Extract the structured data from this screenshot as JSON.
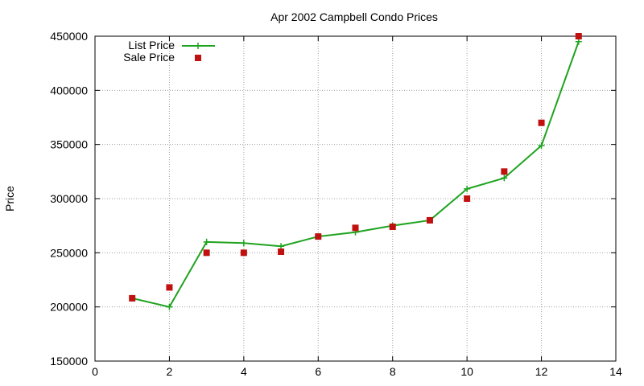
{
  "chart_data": {
    "type": "line",
    "title": "Apr 2002 Campbell Condo Prices",
    "xlabel": "",
    "ylabel": "Price",
    "xlim": [
      0,
      14
    ],
    "ylim": [
      150000,
      450000
    ],
    "xticks": [
      0,
      2,
      4,
      6,
      8,
      10,
      12,
      14
    ],
    "yticks": [
      150000,
      200000,
      250000,
      300000,
      350000,
      400000,
      450000
    ],
    "grid": true,
    "legend_position": "top-left",
    "series": [
      {
        "name": "List Price",
        "style": "line-with-plus-markers",
        "color": "#1fa31f",
        "x": [
          1,
          2,
          3,
          4,
          5,
          6,
          7,
          8,
          9,
          10,
          11,
          12,
          13
        ],
        "y": [
          208000,
          200000,
          260000,
          259000,
          256000,
          265000,
          269000,
          275000,
          280000,
          309000,
          319000,
          349000,
          445000
        ]
      },
      {
        "name": "Sale Price",
        "style": "square-points",
        "color": "#c01010",
        "x": [
          1,
          2,
          3,
          4,
          5,
          6,
          7,
          8,
          9,
          10,
          11,
          12,
          13
        ],
        "y": [
          208000,
          218000,
          250000,
          250000,
          251000,
          265000,
          273000,
          274000,
          280000,
          300000,
          325000,
          370000,
          450000
        ]
      }
    ]
  }
}
